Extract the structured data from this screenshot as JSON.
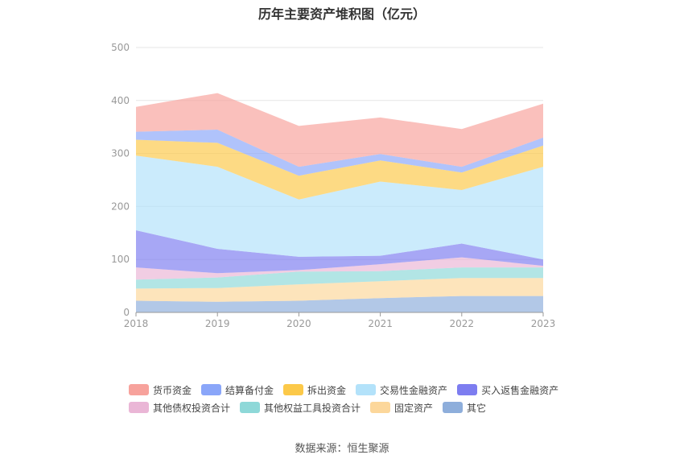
{
  "source": "数据来源：恒生聚源",
  "chart_data": {
    "type": "area",
    "stacked": true,
    "title": "历年主要资产堆积图（亿元）",
    "xlabel": "",
    "ylabel": "",
    "ylim": [
      0,
      500
    ],
    "yticks": [
      0,
      100,
      200,
      300,
      400,
      500
    ],
    "grid": true,
    "legend_position": "bottom",
    "x": [
      "2018",
      "2019",
      "2020",
      "2021",
      "2022",
      "2023"
    ],
    "series": [
      {
        "name": "其它",
        "color": "#8eaedb",
        "values": [
          22,
          20,
          22,
          27,
          31,
          31
        ]
      },
      {
        "name": "固定资产",
        "color": "#fcd79b",
        "values": [
          23,
          26,
          31,
          32,
          34,
          34
        ]
      },
      {
        "name": "其他权益工具投资合计",
        "color": "#8ed8d8",
        "values": [
          17,
          20,
          24,
          19,
          20,
          20
        ]
      },
      {
        "name": "其他债权投资合计",
        "color": "#eab6d6",
        "values": [
          23,
          8,
          3,
          13,
          19,
          3
        ]
      },
      {
        "name": "买入返售金融资产",
        "color": "#7d7df0",
        "values": [
          70,
          46,
          25,
          16,
          26,
          12
        ]
      },
      {
        "name": "交易性金融资产",
        "color": "#b3e2fa",
        "values": [
          141,
          155,
          108,
          140,
          101,
          175
        ]
      },
      {
        "name": "拆出资金",
        "color": "#fcc949",
        "values": [
          30,
          45,
          45,
          40,
          33,
          40
        ]
      },
      {
        "name": "结算备付金",
        "color": "#8aa6f9",
        "values": [
          15,
          25,
          17,
          12,
          11,
          15
        ]
      },
      {
        "name": "货币资金",
        "color": "#f7a29c",
        "values": [
          47,
          69,
          77,
          69,
          71,
          64
        ]
      }
    ],
    "legend_order": [
      "货币资金",
      "结算备付金",
      "拆出资金",
      "交易性金融资产",
      "买入返售金融资产",
      "其他债权投资合计",
      "其他权益工具投资合计",
      "固定资产",
      "其它"
    ]
  }
}
